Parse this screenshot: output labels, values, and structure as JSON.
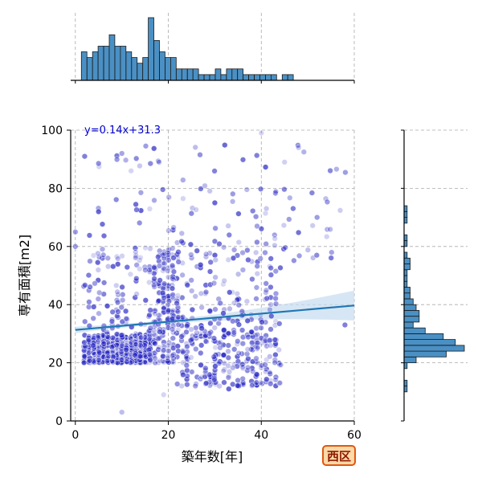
{
  "chart_data": {
    "type": "scatter",
    "title": "",
    "xlabel": "築年数[年]",
    "ylabel": "専有面積[m2]",
    "xlim": [
      -1,
      60
    ],
    "ylim": [
      0,
      100
    ],
    "x_ticks": [
      0,
      20,
      40,
      60
    ],
    "y_ticks": [
      0,
      20,
      40,
      60,
      80,
      100
    ],
    "grid": true,
    "point_color": "#2b2bc4",
    "regression": {
      "label": "y=0.14x+31.3",
      "slope": 0.14,
      "intercept": 31.3,
      "line_color": "#1f77b4",
      "band_color": "#c6dbef"
    },
    "marginal_x_hist": {
      "bin_width": 1.2,
      "start": 1.3,
      "counts": [
        5,
        4,
        5,
        6,
        6,
        8,
        6,
        6,
        5,
        4,
        3,
        4,
        11,
        7,
        5,
        4,
        4,
        2,
        2,
        2,
        2,
        1,
        1,
        1,
        2,
        1,
        2,
        2,
        2,
        1,
        1,
        1,
        1,
        1,
        1,
        0,
        1,
        1,
        0,
        0
      ],
      "color": "#4a90c4"
    },
    "marginal_y_hist": {
      "bin_width": 2.0,
      "start": 10,
      "counts": [
        1,
        1,
        0,
        0,
        1,
        4,
        14,
        20,
        17,
        13,
        7,
        3,
        5,
        5,
        4,
        3,
        2,
        2,
        1,
        1,
        1,
        2,
        2,
        1,
        0,
        1,
        1,
        0,
        0,
        1,
        1,
        1,
        0,
        0,
        0
      ],
      "color": "#4a90c4"
    },
    "clusters": [
      {
        "x": [
          2,
          16
        ],
        "y": [
          20,
          30
        ],
        "n": 520
      },
      {
        "x": [
          16,
          22
        ],
        "y": [
          20,
          60
        ],
        "n": 160
      },
      {
        "x": [
          22,
          44
        ],
        "y": [
          12,
          30
        ],
        "n": 220
      },
      {
        "x": [
          2,
          44
        ],
        "y": [
          30,
          58
        ],
        "n": 260
      },
      {
        "x": [
          2,
          58
        ],
        "y": [
          55,
          95
        ],
        "n": 120
      }
    ],
    "sample_points": [
      {
        "x": 2,
        "y": 91
      },
      {
        "x": 10,
        "y": 92
      },
      {
        "x": 12,
        "y": 86
      },
      {
        "x": 18,
        "y": 89
      },
      {
        "x": 40,
        "y": 99
      },
      {
        "x": 48,
        "y": 94
      },
      {
        "x": 45,
        "y": 89
      },
      {
        "x": 30,
        "y": 75
      },
      {
        "x": 52,
        "y": 70
      },
      {
        "x": 33,
        "y": 11
      },
      {
        "x": 31,
        "y": 12
      },
      {
        "x": 10,
        "y": 3
      },
      {
        "x": 19,
        "y": 9
      },
      {
        "x": 0,
        "y": 65
      },
      {
        "x": 0,
        "y": 60
      },
      {
        "x": 58,
        "y": 33
      }
    ]
  },
  "badge": {
    "label": "西区",
    "background": "#ffd9a8",
    "border": "#e0580f",
    "text_color": "#8b1a00"
  }
}
